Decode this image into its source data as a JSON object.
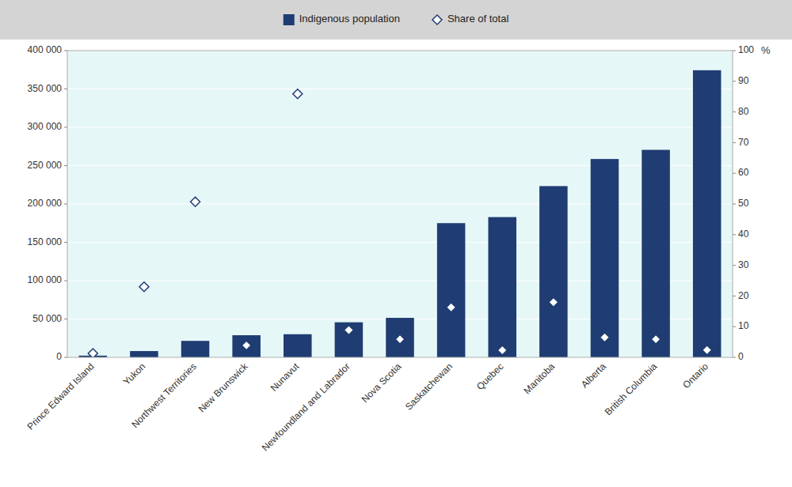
{
  "chart_data": {
    "type": "bar",
    "categories": [
      "Prince Edward Island",
      "Yukon",
      "Northwest Territories",
      "New Brunswick",
      "Nunavut",
      "Newfoundland and Labrador",
      "Nova Scotia",
      "Saskatchewan",
      "Quebec",
      "Manitoba",
      "Alberta",
      "British Columbia",
      "Ontario"
    ],
    "series": [
      {
        "name": "Indigenous population",
        "type": "bar",
        "color": "#1f3d73",
        "values": [
          2230,
          8195,
          21490,
          28845,
          30145,
          45720,
          51495,
          175015,
          182890,
          223310,
          258640,
          270585,
          374395
        ]
      },
      {
        "name": "Share of total",
        "type": "scatter",
        "axis": "y2",
        "color": "#1f3d73",
        "marker": "diamond",
        "values": [
          1.3,
          23.0,
          50.7,
          3.9,
          85.9,
          8.9,
          5.9,
          16.3,
          2.3,
          18.0,
          6.5,
          5.9,
          2.4
        ]
      }
    ],
    "ylim": [
      0,
      400000
    ],
    "yticks": [
      0,
      {
        "value": 50000,
        "label": "50 000"
      },
      {
        "value": 100000,
        "label": "100 000"
      },
      {
        "value": 150000,
        "label": "150 000"
      },
      {
        "value": 200000,
        "label": "200 000"
      },
      {
        "value": 250000,
        "label": "250 000"
      },
      {
        "value": 300000,
        "label": "300 000"
      },
      {
        "value": 350000,
        "label": "350 000"
      },
      {
        "value": 400000,
        "label": "400 000"
      }
    ],
    "y2lim": [
      0,
      100
    ],
    "y2ticks": [
      0,
      10,
      20,
      30,
      40,
      50,
      60,
      70,
      80,
      90,
      100
    ],
    "y2label": "%",
    "grid": true,
    "legend": "top"
  }
}
